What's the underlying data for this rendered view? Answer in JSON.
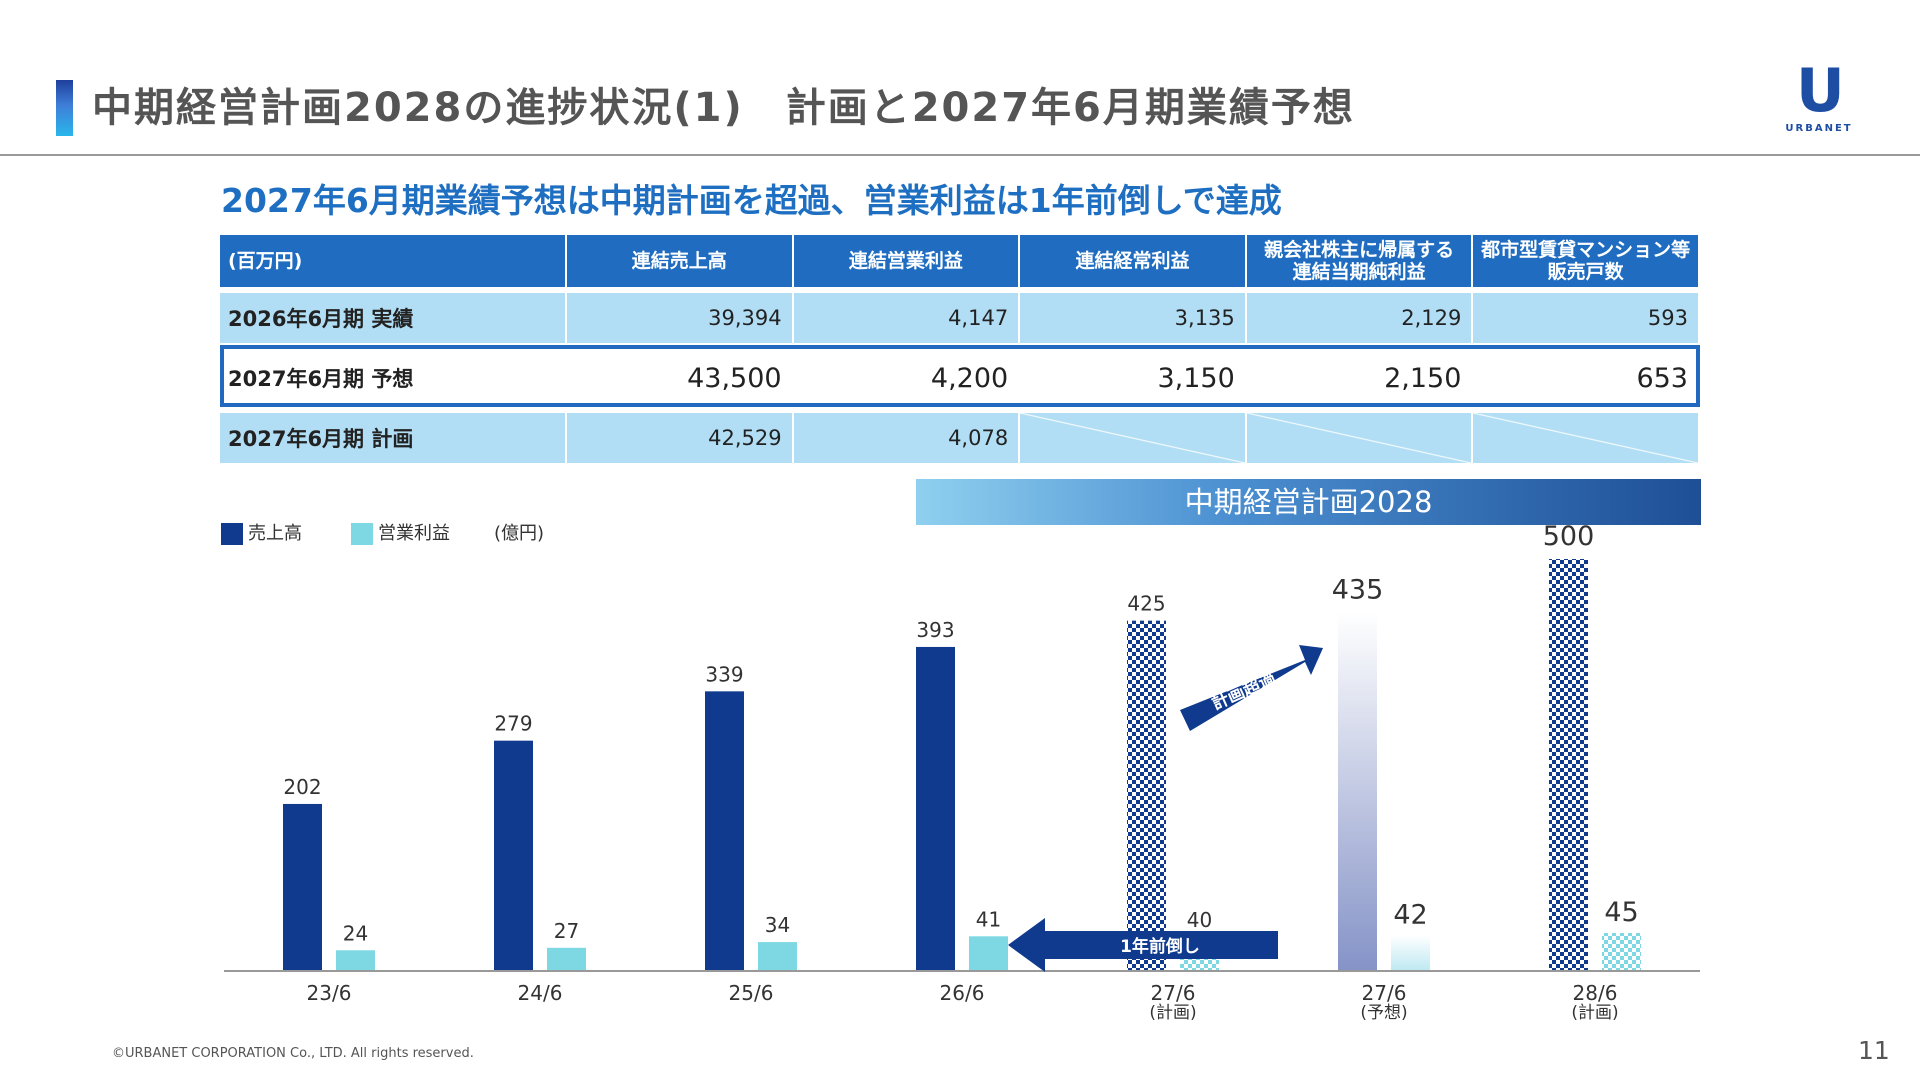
{
  "header": {
    "title": "中期経営計画2028の進捗状況(1)　計画と2027年6月期業績予想",
    "logo_letter": "U",
    "logo_text": "URBANET"
  },
  "subtitle": "2027年6月期業績予想は中期計画を超過、営業利益は1年前倒しで達成",
  "table": {
    "unit_label": "(百万円)",
    "columns": [
      "連結売上高",
      "連結営業利益",
      "連結経常利益",
      "親会社株主に帰属する 連結当期純利益",
      "都市型賃貸マンション等 販売戸数"
    ],
    "rows": [
      {
        "label": "2026年6月期 実績",
        "values": [
          "39,394",
          "4,147",
          "3,135",
          "2,129",
          "593"
        ]
      },
      {
        "label": "2027年6月期 予想",
        "values": [
          "43,500",
          "4,200",
          "3,150",
          "2,150",
          "653"
        ]
      },
      {
        "label": "2027年6月期 計画",
        "values": [
          "42,529",
          "4,078",
          "",
          "",
          ""
        ]
      }
    ]
  },
  "plan_banner": "中期経営計画2028",
  "chart_data": {
    "type": "bar",
    "unit": "(億円)",
    "categories": [
      "23/6",
      "24/6",
      "25/6",
      "26/6",
      "27/6",
      "27/6",
      "28/6"
    ],
    "category_notes": [
      "",
      "",
      "",
      "",
      "(計画)",
      "(予想)",
      "(計画)"
    ],
    "series": [
      {
        "name": "売上高",
        "color": "#0f3a8e",
        "values": [
          202,
          279,
          339,
          393,
          425,
          435,
          500
        ]
      },
      {
        "name": "営業利益",
        "color": "#7ed8e4",
        "values": [
          24,
          27,
          34,
          41,
          40,
          42,
          45
        ]
      }
    ],
    "ylim": [
      0,
      500
    ],
    "legend_position": "top-left",
    "annotations": [
      {
        "text": "計画超過",
        "type": "arrow"
      },
      {
        "text": "1年前倒し",
        "type": "arrow"
      }
    ]
  },
  "footer": {
    "copyright": "©URBANET CORPORATION Co., LTD. All rights reserved.",
    "page_number": "11"
  }
}
